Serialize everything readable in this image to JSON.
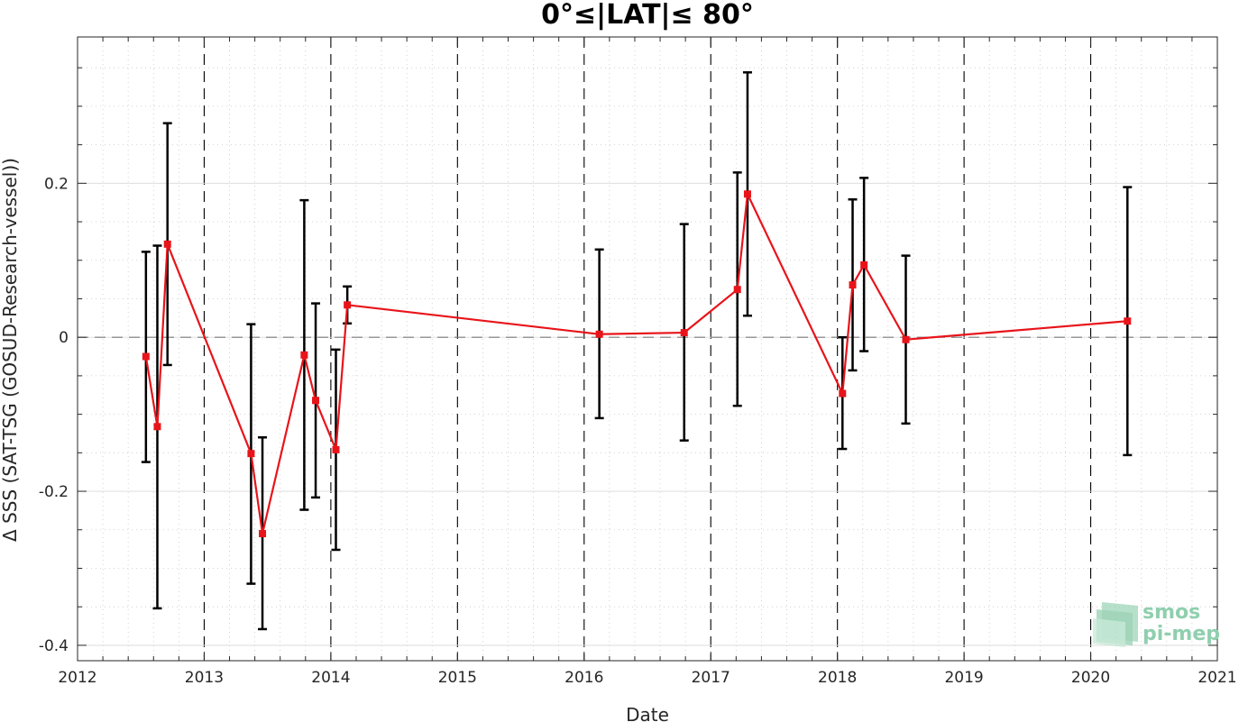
{
  "chart_data": {
    "type": "scatter",
    "title": "0°≤|LAT|≤ 80°",
    "xlabel": "Date",
    "ylabel": "Δ SSS (SAT-TSG (GOSUD-Research-vessel))",
    "xlim": [
      2012,
      2021
    ],
    "ylim": [
      -0.42,
      0.39
    ],
    "x_ticks": [
      "2012",
      "2013",
      "2014",
      "2015",
      "2016",
      "2017",
      "2018",
      "2019",
      "2020",
      "2021"
    ],
    "y_ticks": [
      {
        "value": -0.4,
        "label": "-0.4"
      },
      {
        "value": -0.2,
        "label": "-0.2"
      },
      {
        "value": 0,
        "label": "0"
      },
      {
        "value": 0.2,
        "label": "0.2"
      }
    ],
    "grid": true,
    "reference_line": 0,
    "series": [
      {
        "color": "#e8141a",
        "points": [
          {
            "x": 2012.54,
            "y": -0.025,
            "lo": -0.162,
            "hi": 0.111
          },
          {
            "x": 2012.63,
            "y": -0.116,
            "lo": -0.352,
            "hi": 0.119
          },
          {
            "x": 2012.71,
            "y": 0.121,
            "lo": -0.036,
            "hi": 0.278
          },
          {
            "x": 2013.37,
            "y": -0.151,
            "lo": -0.32,
            "hi": 0.017
          },
          {
            "x": 2013.46,
            "y": -0.255,
            "lo": -0.379,
            "hi": -0.13
          },
          {
            "x": 2013.79,
            "y": -0.023,
            "lo": -0.224,
            "hi": 0.178
          },
          {
            "x": 2013.88,
            "y": -0.082,
            "lo": -0.208,
            "hi": 0.044
          },
          {
            "x": 2014.04,
            "y": -0.146,
            "lo": -0.276,
            "hi": -0.016
          },
          {
            "x": 2014.13,
            "y": 0.042,
            "lo": 0.018,
            "hi": 0.066
          },
          {
            "x": 2016.12,
            "y": 0.004,
            "lo": -0.105,
            "hi": 0.114
          },
          {
            "x": 2016.79,
            "y": 0.006,
            "lo": -0.134,
            "hi": 0.147
          },
          {
            "x": 2017.21,
            "y": 0.062,
            "lo": -0.089,
            "hi": 0.214
          },
          {
            "x": 2017.29,
            "y": 0.186,
            "lo": 0.028,
            "hi": 0.344
          },
          {
            "x": 2018.04,
            "y": -0.073,
            "lo": -0.145,
            "hi": 0.0
          },
          {
            "x": 2018.12,
            "y": 0.068,
            "lo": -0.043,
            "hi": 0.179
          },
          {
            "x": 2018.21,
            "y": 0.094,
            "lo": -0.018,
            "hi": 0.207
          },
          {
            "x": 2018.54,
            "y": -0.003,
            "lo": -0.112,
            "hi": 0.106
          },
          {
            "x": 2020.29,
            "y": 0.021,
            "lo": -0.153,
            "hi": 0.195
          }
        ]
      }
    ]
  },
  "logo": {
    "line1": "smos",
    "line2": "pi-mep"
  }
}
